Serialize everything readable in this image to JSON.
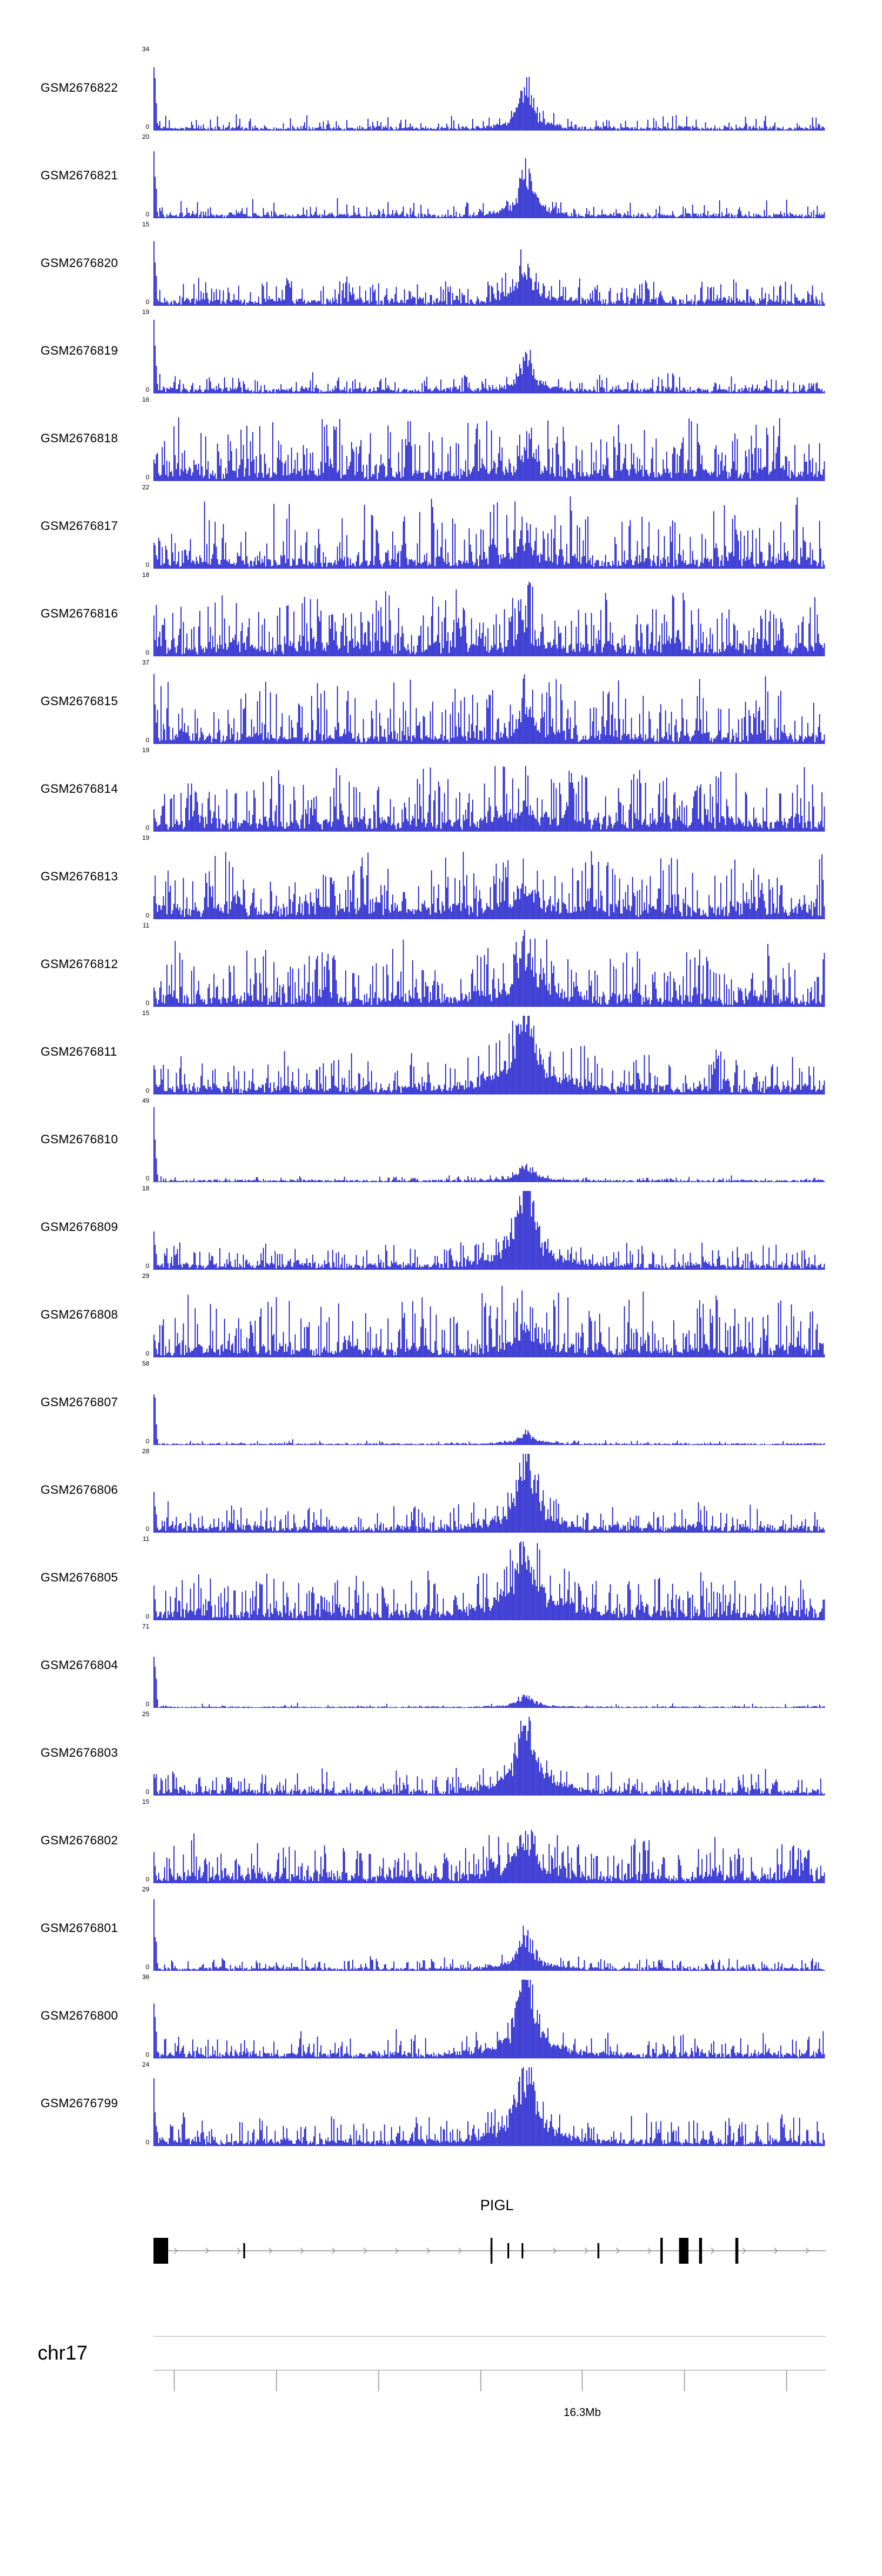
{
  "figure": {
    "background": "#ffffff",
    "signal_color": "#1414cc",
    "gene_color": "#000000",
    "axis_color": "#999999"
  },
  "chart_data": {
    "type": "area",
    "layout": "stacked-genome-signal-tracks",
    "peak_pos": 0.555,
    "left_width": 0.006,
    "tracks": [
      {
        "label": "GSM2676822",
        "ymax": 34,
        "ymin": 0,
        "profile": {
          "seed": 11,
          "base": 0.05,
          "spike_prob": 0.3,
          "spike_amp": 0.18,
          "peak": 0.5,
          "peak_width": 0.009,
          "left": 1.0,
          "mod": 0.3
        }
      },
      {
        "label": "GSM2676821",
        "ymax": 20,
        "ymin": 0,
        "profile": {
          "seed": 22,
          "base": 0.06,
          "spike_prob": 0.3,
          "spike_amp": 0.2,
          "peak": 0.55,
          "peak_width": 0.009,
          "left": 1.0,
          "mod": 0.3
        }
      },
      {
        "label": "GSM2676820",
        "ymax": 15,
        "ymin": 0,
        "profile": {
          "seed": 33,
          "base": 0.09,
          "spike_prob": 0.45,
          "spike_amp": 0.28,
          "peak": 0.45,
          "peak_width": 0.009,
          "left": 1.0,
          "mod": 0.3
        }
      },
      {
        "label": "GSM2676819",
        "ymax": 19,
        "ymin": 0,
        "profile": {
          "seed": 44,
          "base": 0.07,
          "spike_prob": 0.35,
          "spike_amp": 0.22,
          "peak": 0.38,
          "peak_width": 0.009,
          "left": 1.0,
          "mod": 0.3
        }
      },
      {
        "label": "GSM2676818",
        "ymax": 16,
        "ymin": 0,
        "profile": {
          "seed": 55,
          "base": 0.16,
          "spike_prob": 0.55,
          "spike_amp": 0.75,
          "peak": 0.22,
          "peak_width": 0.01,
          "left": 0.35,
          "mod": 0.35
        }
      },
      {
        "label": "GSM2676817",
        "ymax": 22,
        "ymin": 0,
        "profile": {
          "seed": 66,
          "base": 0.15,
          "spike_prob": 0.5,
          "spike_amp": 0.8,
          "peak": 0.25,
          "peak_width": 0.01,
          "left": 0.5,
          "mod": 0.4
        }
      },
      {
        "label": "GSM2676816",
        "ymax": 18,
        "ymin": 0,
        "profile": {
          "seed": 77,
          "base": 0.18,
          "spike_prob": 0.55,
          "spike_amp": 0.7,
          "peak": 0.22,
          "peak_width": 0.01,
          "left": 0.45,
          "mod": 0.35
        }
      },
      {
        "label": "GSM2676815",
        "ymax": 37,
        "ymin": 0,
        "profile": {
          "seed": 88,
          "base": 0.15,
          "spike_prob": 0.5,
          "spike_amp": 0.75,
          "peak": 0.3,
          "peak_width": 0.01,
          "left": 0.95,
          "mod": 0.4
        }
      },
      {
        "label": "GSM2676814",
        "ymax": 19,
        "ymin": 0,
        "profile": {
          "seed": 99,
          "base": 0.18,
          "spike_prob": 0.55,
          "spike_amp": 0.72,
          "peak": 0.25,
          "peak_width": 0.01,
          "left": 0.4,
          "mod": 0.35
        }
      },
      {
        "label": "GSM2676813",
        "ymax": 19,
        "ymin": 0,
        "profile": {
          "seed": 110,
          "base": 0.2,
          "spike_prob": 0.55,
          "spike_amp": 0.75,
          "peak": 0.3,
          "peak_width": 0.012,
          "left": 0.45,
          "mod": 0.4
        }
      },
      {
        "label": "GSM2676812",
        "ymax": 11,
        "ymin": 0,
        "profile": {
          "seed": 121,
          "base": 0.16,
          "spike_prob": 0.5,
          "spike_amp": 0.7,
          "peak": 0.55,
          "peak_width": 0.012,
          "left": 0.4,
          "mod": 0.4
        }
      },
      {
        "label": "GSM2676811",
        "ymax": 15,
        "ymin": 0,
        "profile": {
          "seed": 132,
          "base": 0.13,
          "spike_prob": 0.45,
          "spike_amp": 0.5,
          "peak": 0.85,
          "peak_width": 0.015,
          "left": 0.5,
          "mod": 0.35
        }
      },
      {
        "label": "GSM2676810",
        "ymax": 49,
        "ymin": 0,
        "profile": {
          "seed": 143,
          "base": 0.03,
          "spike_prob": 0.2,
          "spike_amp": 0.06,
          "peak": 0.18,
          "peak_width": 0.01,
          "left": 1.0,
          "mod": 0.2
        }
      },
      {
        "label": "GSM2676809",
        "ymax": 18,
        "ymin": 0,
        "profile": {
          "seed": 154,
          "base": 0.09,
          "spike_prob": 0.4,
          "spike_amp": 0.3,
          "peak": 0.95,
          "peak_width": 0.012,
          "left": 0.6,
          "mod": 0.3
        }
      },
      {
        "label": "GSM2676808",
        "ymax": 29,
        "ymin": 0,
        "profile": {
          "seed": 165,
          "base": 0.16,
          "spike_prob": 0.5,
          "spike_amp": 0.75,
          "peak": 0.3,
          "peak_width": 0.01,
          "left": 0.35,
          "mod": 0.4
        }
      },
      {
        "label": "GSM2676807",
        "ymax": 58,
        "ymin": 0,
        "profile": {
          "seed": 176,
          "base": 0.022,
          "spike_prob": 0.15,
          "spike_amp": 0.05,
          "peak": 0.14,
          "peak_width": 0.01,
          "left": 1.0,
          "mod": 0.2
        }
      },
      {
        "label": "GSM2676806",
        "ymax": 28,
        "ymin": 0,
        "profile": {
          "seed": 187,
          "base": 0.09,
          "spike_prob": 0.4,
          "spike_amp": 0.32,
          "peak": 0.9,
          "peak_width": 0.012,
          "left": 0.55,
          "mod": 0.3
        }
      },
      {
        "label": "GSM2676805",
        "ymax": 11,
        "ymin": 0,
        "profile": {
          "seed": 198,
          "base": 0.15,
          "spike_prob": 0.5,
          "spike_amp": 0.55,
          "peak": 0.8,
          "peak_width": 0.015,
          "left": 0.45,
          "mod": 0.35
        }
      },
      {
        "label": "GSM2676804",
        "ymax": 71,
        "ymin": 0,
        "profile": {
          "seed": 209,
          "base": 0.02,
          "spike_prob": 0.12,
          "spike_amp": 0.045,
          "peak": 0.13,
          "peak_width": 0.01,
          "left": 1.0,
          "mod": 0.2
        }
      },
      {
        "label": "GSM2676803",
        "ymax": 25,
        "ymin": 0,
        "profile": {
          "seed": 220,
          "base": 0.08,
          "spike_prob": 0.4,
          "spike_amp": 0.28,
          "peak": 0.85,
          "peak_width": 0.012,
          "left": 0.45,
          "mod": 0.3
        }
      },
      {
        "label": "GSM2676802",
        "ymax": 15,
        "ymin": 0,
        "profile": {
          "seed": 231,
          "base": 0.13,
          "spike_prob": 0.5,
          "spike_amp": 0.5,
          "peak": 0.5,
          "peak_width": 0.012,
          "left": 0.4,
          "mod": 0.35
        }
      },
      {
        "label": "GSM2676801",
        "ymax": 29,
        "ymin": 0,
        "profile": {
          "seed": 242,
          "base": 0.045,
          "spike_prob": 0.3,
          "spike_amp": 0.14,
          "peak": 0.4,
          "peak_width": 0.01,
          "left": 1.0,
          "mod": 0.25
        }
      },
      {
        "label": "GSM2676800",
        "ymax": 36,
        "ymin": 0,
        "profile": {
          "seed": 253,
          "base": 0.08,
          "spike_prob": 0.35,
          "spike_amp": 0.3,
          "peak": 0.95,
          "peak_width": 0.012,
          "left": 0.95,
          "mod": 0.3
        }
      },
      {
        "label": "GSM2676799",
        "ymax": 24,
        "ymin": 0,
        "profile": {
          "seed": 264,
          "base": 0.09,
          "spike_prob": 0.4,
          "spike_amp": 0.35,
          "peak": 0.9,
          "peak_width": 0.013,
          "left": 1.0,
          "mod": 0.3
        }
      }
    ],
    "gene_track": {
      "gene": "PIGL",
      "strand": "+",
      "label_frac": 0.511,
      "arrow_spacing": 0.047,
      "exons": [
        {
          "x": 0.0,
          "w": 25,
          "tall": true
        },
        {
          "x": 0.135,
          "w": 3,
          "tall": false
        },
        {
          "x": 0.503,
          "w": 3,
          "tall": true
        },
        {
          "x": 0.528,
          "w": 3,
          "tall": false
        },
        {
          "x": 0.549,
          "w": 3,
          "tall": false
        },
        {
          "x": 0.662,
          "w": 3,
          "tall": false
        },
        {
          "x": 0.756,
          "w": 4,
          "tall": true
        },
        {
          "x": 0.789,
          "w": 16,
          "tall": true
        },
        {
          "x": 0.814,
          "w": 5,
          "tall": true
        },
        {
          "x": 0.868,
          "w": 5,
          "tall": true
        }
      ]
    },
    "axis": {
      "chrom_label": "chr17",
      "tick_label": "16.3Mb",
      "label_frac": 0.638,
      "ticks": [
        0.031,
        0.183,
        0.335,
        0.487,
        0.638,
        0.79,
        0.942
      ]
    }
  }
}
